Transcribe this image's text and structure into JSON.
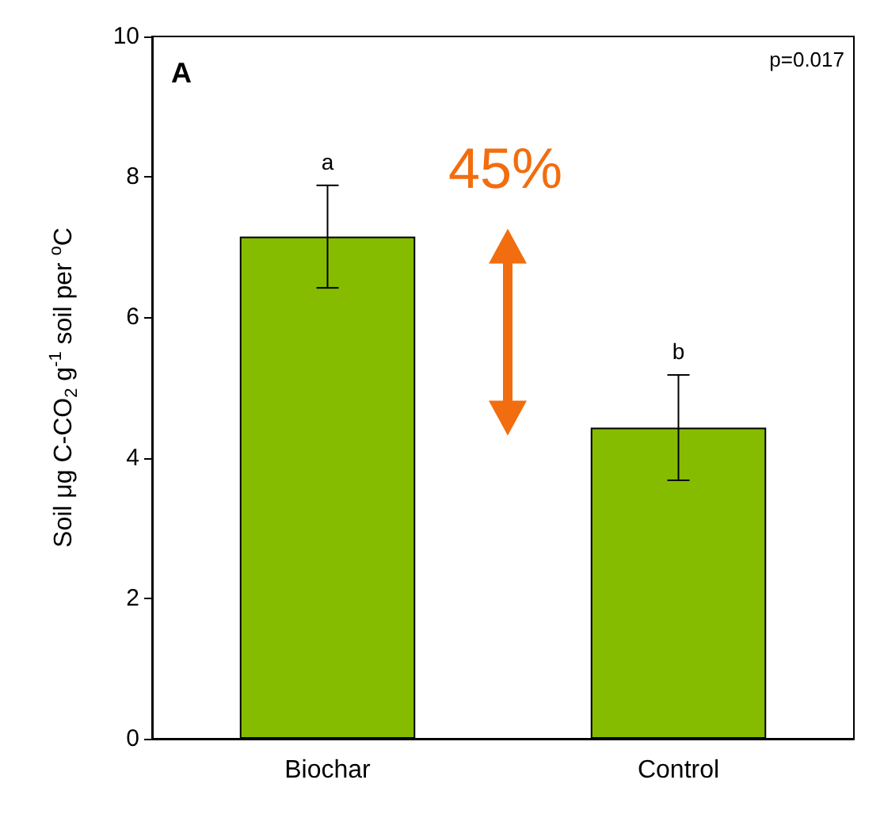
{
  "chart_data": {
    "type": "bar",
    "ylabel": "Soil μg C-CO$_{2}$ g$^{-1}$ soil per $^{o}$C",
    "categories": [
      "Biochar",
      "Control"
    ],
    "values": [
      7.15,
      4.43
    ],
    "errors": [
      [
        6.42,
        7.88
      ],
      [
        3.68,
        5.18
      ]
    ],
    "color": "#86bc00",
    "ylim": [
      0,
      10
    ],
    "yticks": [
      0,
      2,
      4,
      6,
      8,
      10
    ],
    "grid": false,
    "annotations": [
      "A",
      "p=0.017",
      "45%",
      "a",
      "b"
    ]
  }
}
